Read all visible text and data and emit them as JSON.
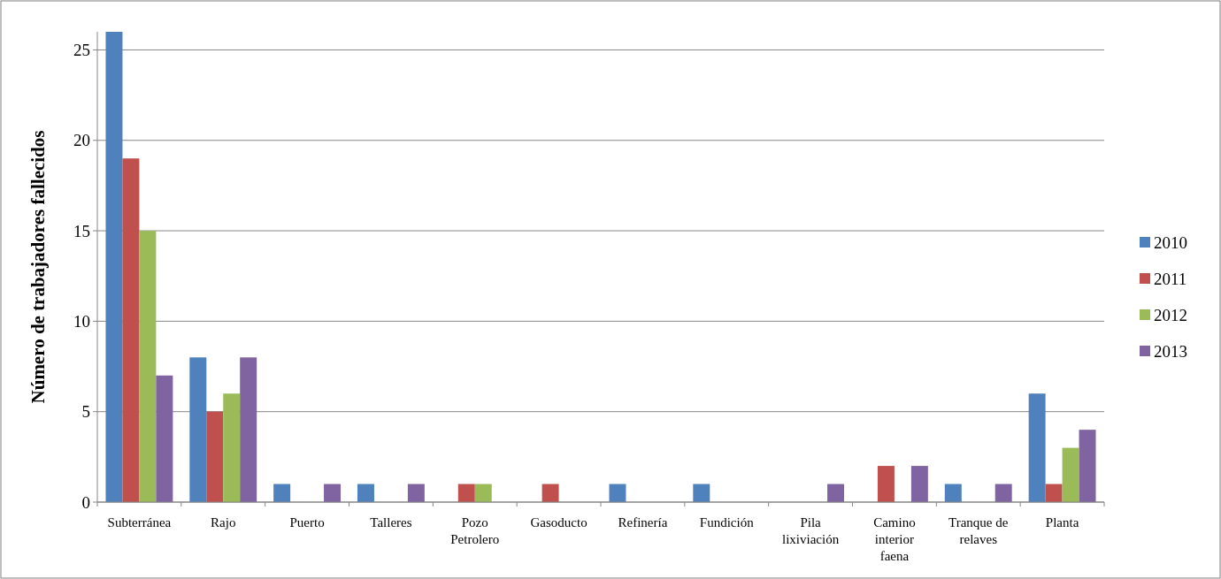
{
  "chart_data": {
    "type": "bar",
    "ylabel": "Número de trabajadores fallecidos",
    "categories": [
      "Subterránea",
      "Rajo",
      "Puerto",
      "Talleres",
      "Pozo Petrolero",
      "Gasoducto",
      "Refinería",
      "Fundición",
      "Pila lixiviación",
      "Camino interior faena",
      "Tranque de relaves",
      "Planta"
    ],
    "series": [
      {
        "name": "2010",
        "color": "#4f81bd",
        "values": [
          26,
          8,
          1,
          1,
          0,
          0,
          1,
          1,
          0,
          0,
          1,
          6
        ]
      },
      {
        "name": "2011",
        "color": "#c0504d",
        "values": [
          19,
          5,
          0,
          0,
          1,
          1,
          0,
          0,
          0,
          2,
          0,
          1
        ]
      },
      {
        "name": "2012",
        "color": "#9bbb59",
        "values": [
          15,
          6,
          0,
          0,
          1,
          0,
          0,
          0,
          0,
          0,
          0,
          3
        ]
      },
      {
        "name": "2013",
        "color": "#8064a2",
        "values": [
          7,
          8,
          1,
          1,
          0,
          0,
          0,
          0,
          1,
          2,
          1,
          4
        ]
      }
    ],
    "ylim": [
      0,
      26
    ],
    "yticks": [
      0,
      5,
      10,
      15,
      20,
      25
    ],
    "grid": "y",
    "legend": "right"
  }
}
